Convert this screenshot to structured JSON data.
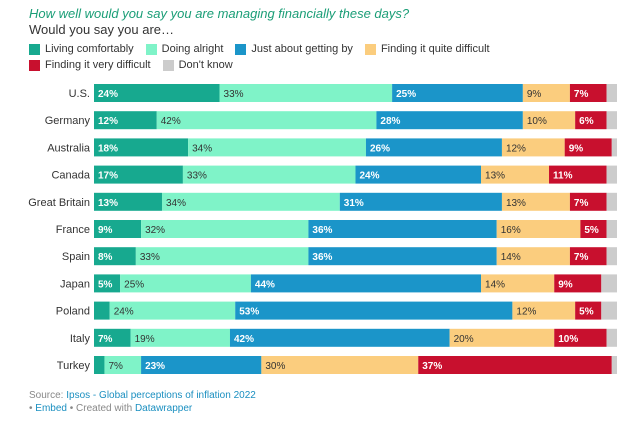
{
  "title": "How well would you say you are managing financially these days?",
  "subtitle": "Would you say you are…",
  "legend": [
    {
      "label": "Living comfortably",
      "color": "#17a98f"
    },
    {
      "label": "Doing alright",
      "color": "#7ff3c8"
    },
    {
      "label": "Just about getting by",
      "color": "#1b95c9"
    },
    {
      "label": "Finding it quite difficult",
      "color": "#fbcd7e"
    },
    {
      "label": "Finding it very difficult",
      "color": "#c8102e"
    },
    {
      "label": "Don't know",
      "color": "#cccccc"
    }
  ],
  "source": {
    "prefix": "Source: ",
    "name": "Ipsos - Global perceptions of inflation 2022"
  },
  "footer": {
    "bullet": "• ",
    "embed": "Embed",
    "middle": " • Created with ",
    "tool": "Datawrapper"
  },
  "chart_data": {
    "type": "bar",
    "orientation": "horizontal",
    "stacked": true,
    "categories": [
      "U.S.",
      "Germany",
      "Australia",
      "Canada",
      "Great Britain",
      "France",
      "Spain",
      "Japan",
      "Poland",
      "Italy",
      "Turkey"
    ],
    "series": [
      {
        "name": "Living comfortably",
        "color": "#17a98f",
        "values": [
          24,
          12,
          18,
          17,
          13,
          9,
          8,
          5,
          3,
          7,
          2
        ]
      },
      {
        "name": "Doing alright",
        "color": "#7ff3c8",
        "values": [
          33,
          42,
          34,
          33,
          34,
          32,
          33,
          25,
          24,
          19,
          7
        ]
      },
      {
        "name": "Just about getting by",
        "color": "#1b95c9",
        "values": [
          25,
          28,
          26,
          24,
          31,
          36,
          36,
          44,
          53,
          42,
          23
        ]
      },
      {
        "name": "Finding it quite difficult",
        "color": "#fbcd7e",
        "values": [
          9,
          10,
          12,
          13,
          13,
          16,
          14,
          14,
          12,
          20,
          30
        ]
      },
      {
        "name": "Finding it very difficult",
        "color": "#c8102e",
        "values": [
          7,
          6,
          9,
          11,
          7,
          5,
          7,
          9,
          5,
          10,
          37
        ]
      },
      {
        "name": "Don't know",
        "color": "#cccccc",
        "values": [
          2,
          2,
          1,
          2,
          2,
          2,
          2,
          3,
          3,
          2,
          1
        ]
      }
    ],
    "labels": [
      [
        "24%",
        "33%",
        "25%",
        "9%",
        "7%",
        ""
      ],
      [
        "12%",
        "42%",
        "28%",
        "10%",
        "6%",
        ""
      ],
      [
        "18%",
        "34%",
        "26%",
        "12%",
        "9%",
        ""
      ],
      [
        "17%",
        "33%",
        "24%",
        "13%",
        "11%",
        ""
      ],
      [
        "13%",
        "34%",
        "31%",
        "13%",
        "7%",
        ""
      ],
      [
        "9%",
        "32%",
        "36%",
        "16%",
        "5%",
        ""
      ],
      [
        "8%",
        "33%",
        "36%",
        "14%",
        "7%",
        ""
      ],
      [
        "5%",
        "25%",
        "44%",
        "14%",
        "9%",
        ""
      ],
      [
        "",
        "24%",
        "53%",
        "12%",
        "5%",
        ""
      ],
      [
        "7%",
        "19%",
        "42%",
        "20%",
        "10%",
        ""
      ],
      [
        "",
        "7%",
        "23%",
        "30%",
        "37%",
        ""
      ]
    ],
    "label_text_colors": [
      "#ffffff",
      "#333333",
      "#ffffff",
      "#333333",
      "#ffffff",
      "#333333"
    ],
    "xlim": [
      0,
      100
    ]
  }
}
